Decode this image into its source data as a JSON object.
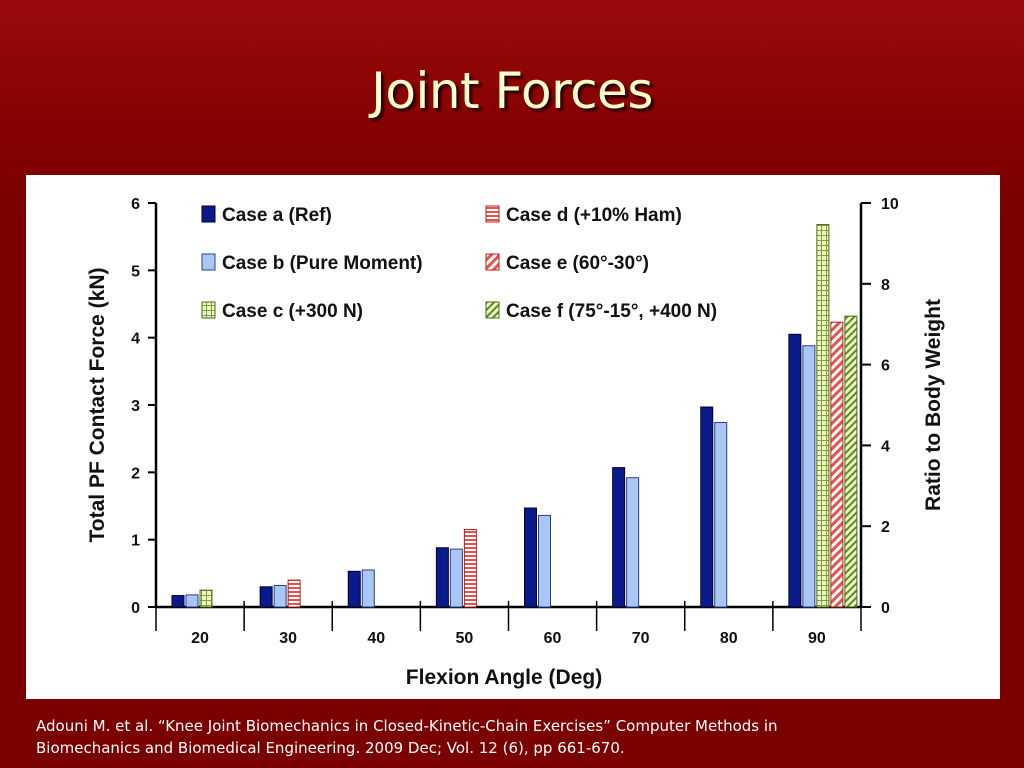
{
  "slide": {
    "title": "Joint Forces",
    "citation_line1": "Adouni M. et al. “Knee Joint Biomechanics in Closed-Kinetic-Chain Exercises” Computer Methods in",
    "citation_line2": "Biomechanics and Biomedical Engineering. 2009 Dec; Vol. 12 (6), pp 661-670."
  },
  "colors": {
    "background": "#7a0000",
    "title": "#ffffcc",
    "case_a": "#0a1a8a",
    "case_b": "#a9c6f4",
    "case_c": "#e9f5b0",
    "case_d": "#e8524a",
    "case_e": "#e8524a",
    "case_f": "#b6d77a"
  },
  "chart_data": {
    "type": "bar",
    "xlabel": "Flexion Angle (Deg)",
    "ylabel": "Total PF Contact Force  (kN)",
    "y2label": "Ratio to Body Weight",
    "categories": [
      "20",
      "30",
      "40",
      "50",
      "60",
      "70",
      "80",
      "90"
    ],
    "ylim": [
      0,
      6
    ],
    "y2lim": [
      0,
      10
    ],
    "yticks": [
      "0",
      "1",
      "2",
      "3",
      "4",
      "5",
      "6"
    ],
    "y2ticks": [
      "0",
      "2",
      "4",
      "6",
      "8",
      "10"
    ],
    "legend_placement": "top",
    "grid": false,
    "series": [
      {
        "name": "Case a (Ref)",
        "key": "a",
        "pattern": "solid",
        "values": [
          0.17,
          0.3,
          0.53,
          0.88,
          1.47,
          2.07,
          2.97,
          4.05
        ]
      },
      {
        "name": "Case b (Pure Moment)",
        "key": "b",
        "pattern": "solid",
        "values": [
          0.18,
          0.32,
          0.55,
          0.86,
          1.36,
          1.92,
          2.74,
          3.88
        ]
      },
      {
        "name": "Case c (+300 N)",
        "key": "c",
        "pattern": "grid",
        "values": [
          0.25,
          null,
          null,
          null,
          null,
          null,
          null,
          5.68
        ]
      },
      {
        "name": "Case d (+10% Ham)",
        "key": "d",
        "pattern": "horizontal",
        "values": [
          null,
          0.4,
          null,
          1.15,
          null,
          null,
          null,
          null
        ]
      },
      {
        "name": "Case e (60°-30°)",
        "key": "e",
        "pattern": "diagonal",
        "values": [
          null,
          null,
          null,
          null,
          null,
          null,
          null,
          4.23
        ]
      },
      {
        "name": "Case f (75°-15°, +400 N)",
        "key": "f",
        "pattern": "diagonal-dense",
        "values": [
          null,
          null,
          null,
          null,
          null,
          null,
          null,
          4.32
        ]
      }
    ]
  }
}
